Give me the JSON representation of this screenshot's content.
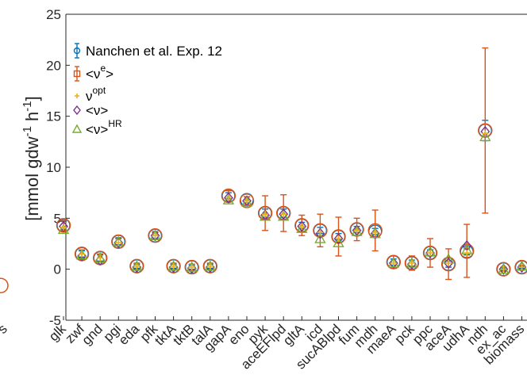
{
  "chart_data": {
    "type": "scatter",
    "title": "",
    "ylabel": "[mmol gdw⁻¹ h⁻¹]",
    "ylabel_parts": {
      "a": "[mmol gdw",
      "sup1": "-1",
      "b": " h",
      "sup2": "-1",
      "c": "]"
    },
    "ylim": [
      -5,
      25
    ],
    "yticks": [
      -5,
      0,
      5,
      10,
      15,
      20,
      25
    ],
    "categories": [
      "glk",
      "zwf",
      "gnd",
      "pgi",
      "eda",
      "pfk",
      "tktA",
      "tktB",
      "talA",
      "gapA",
      "eno",
      "pyk",
      "aceEFlpd",
      "gltA",
      "icd",
      "sucABlpd",
      "fum",
      "mdh",
      "maeA",
      "pck",
      "ppc",
      "aceA",
      "udhA",
      "ndh",
      "ex_ac",
      "biomass"
    ],
    "partial_left": {
      "label": "s",
      "value": -1.6
    },
    "legend": {
      "position": "top-left",
      "entries": [
        {
          "id": "exp",
          "label": "Nanchen et al. Exp. 12",
          "color": "#0072BD",
          "marker": "circle-errorbar"
        },
        {
          "id": "ne",
          "label": "<ν",
          "sup": "e",
          "suffix": ">",
          "color": "#D95319",
          "marker": "square-errorbar"
        },
        {
          "id": "nopt",
          "label": "ν",
          "sup": "opt",
          "suffix": "",
          "color": "#EDB120",
          "marker": "plus"
        },
        {
          "id": "nmean",
          "label": "<ν>",
          "sup": "",
          "suffix": "",
          "color": "#7E2F8E",
          "marker": "diamond"
        },
        {
          "id": "nhr",
          "label": "<ν>",
          "sup": "HR",
          "suffix": "",
          "color": "#77AC30",
          "marker": "triangle"
        }
      ]
    },
    "series": [
      {
        "name": "Nanchen et al. Exp. 12",
        "values": [
          4.3,
          1.5,
          1.1,
          2.7,
          0.3,
          3.3,
          0.3,
          0.2,
          0.3,
          7.2,
          6.8,
          5.5,
          5.5,
          4.3,
          3.8,
          3.2,
          3.9,
          3.7,
          0.7,
          0.6,
          1.6,
          0.5,
          1.7,
          13.6,
          0.0,
          0.2
        ],
        "err": [
          0.4,
          0.3,
          0.3,
          0.3,
          0.2,
          0.3,
          0.2,
          0.2,
          0.2,
          0.3,
          0.3,
          0.4,
          0.4,
          0.3,
          0.3,
          0.3,
          0.3,
          0.3,
          0.3,
          0.3,
          0.3,
          0.3,
          0.3,
          1.0,
          0.1,
          0.1
        ]
      },
      {
        "name": "<νe>",
        "values": [
          4.3,
          1.5,
          1.1,
          2.7,
          0.3,
          3.3,
          0.3,
          0.2,
          0.3,
          7.2,
          6.7,
          5.5,
          5.5,
          4.3,
          3.8,
          3.2,
          3.9,
          3.8,
          0.7,
          0.6,
          1.6,
          0.5,
          1.8,
          13.6,
          0.0,
          0.2
        ],
        "err": [
          0.5,
          0.4,
          0.4,
          0.4,
          0.3,
          0.4,
          0.3,
          0.3,
          0.3,
          0.5,
          0.4,
          1.7,
          1.8,
          1.0,
          1.6,
          1.9,
          1.1,
          2.0,
          0.6,
          0.7,
          1.4,
          1.5,
          2.6,
          8.1,
          0.2,
          0.2
        ]
      },
      {
        "name": "νopt",
        "values": [
          4.1,
          1.5,
          1.1,
          2.6,
          0.3,
          3.3,
          0.3,
          0.2,
          0.3,
          7.0,
          6.7,
          5.4,
          5.4,
          4.2,
          3.6,
          3.0,
          3.8,
          3.6,
          0.6,
          0.6,
          1.6,
          0.6,
          1.6,
          13.3,
          0.0,
          0.2
        ]
      },
      {
        "name": "<ν>",
        "values": [
          4.2,
          1.3,
          0.9,
          2.6,
          0.2,
          3.3,
          0.2,
          0.1,
          0.2,
          7.0,
          6.7,
          5.3,
          5.4,
          4.2,
          3.5,
          3.0,
          3.8,
          3.5,
          0.6,
          0.5,
          1.6,
          0.6,
          2.3,
          13.5,
          0.0,
          0.2
        ]
      },
      {
        "name": "<ν>HR",
        "values": [
          3.9,
          1.4,
          1.1,
          2.7,
          0.3,
          3.3,
          0.3,
          0.2,
          0.3,
          6.8,
          6.6,
          5.2,
          5.2,
          4.0,
          3.0,
          2.6,
          3.7,
          3.5,
          0.6,
          0.6,
          1.7,
          1.0,
          1.9,
          13.0,
          0.0,
          0.3
        ]
      }
    ],
    "grid": false
  }
}
